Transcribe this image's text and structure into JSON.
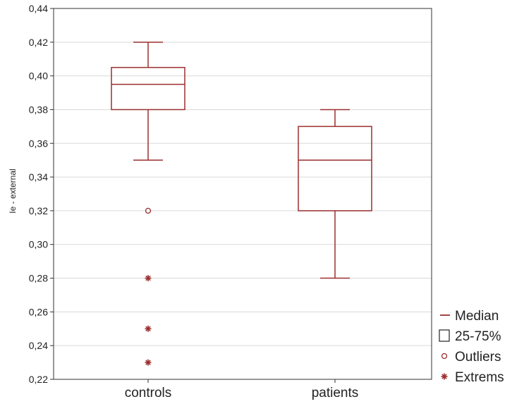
{
  "chart_data": {
    "type": "boxplot",
    "title": "",
    "xlabel": "",
    "ylabel": "Ie - external",
    "ylim": [
      0.22,
      0.44
    ],
    "y_ticks": [
      "0,22",
      "0,24",
      "0,26",
      "0,28",
      "0,30",
      "0,32",
      "0,34",
      "0,36",
      "0,38",
      "0,40",
      "0,42",
      "0,44"
    ],
    "grid": true,
    "categories": [
      "controls",
      "patients"
    ],
    "boxes": [
      {
        "category": "controls",
        "whisker_low": 0.35,
        "q1": 0.38,
        "median": 0.395,
        "q3": 0.405,
        "whisker_high": 0.42,
        "outliers": [
          0.32
        ],
        "extremes": [
          0.28,
          0.25,
          0.23
        ]
      },
      {
        "category": "patients",
        "whisker_low": 0.28,
        "q1": 0.32,
        "median": 0.35,
        "q3": 0.37,
        "whisker_high": 0.38,
        "outliers": [],
        "extremes": []
      }
    ],
    "legend": {
      "position": "bottom-right",
      "items": [
        {
          "symbol": "median-line",
          "label": "Median"
        },
        {
          "symbol": "box",
          "label": "25-75%"
        },
        {
          "symbol": "circle",
          "label": "Outliers"
        },
        {
          "symbol": "asterisk",
          "label": "Extrems"
        }
      ]
    },
    "colors": {
      "series": "#9b2f2f",
      "grid": "#d9d9d9",
      "frame": "#333333"
    }
  }
}
